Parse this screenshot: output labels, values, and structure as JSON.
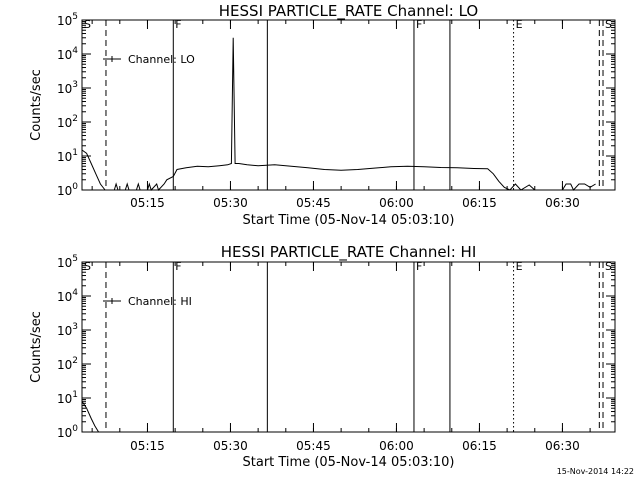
{
  "footer_timestamp": "15-Nov-2014 14:22",
  "chart_data": [
    {
      "type": "line",
      "title": "HESSI PARTICLE_RATE Channel: LO",
      "xlabel": "Start Time (05-Nov-14 05:03:10)",
      "ylabel": "Counts/sec",
      "yscale": "log",
      "ylim": [
        1,
        100000
      ],
      "xlim": [
        "05:03:10",
        "06:39:30"
      ],
      "x_ticks": [
        "05:15",
        "05:30",
        "05:45",
        "06:00",
        "06:15",
        "06:30"
      ],
      "y_ticks": [
        "10^0",
        "10^1",
        "10^2",
        "10^3",
        "10^4",
        "10^5"
      ],
      "legend": [
        {
          "label": "Channel: LO"
        }
      ],
      "markers": [
        {
          "label": "S",
          "time": "05:03:10",
          "style": "solid"
        },
        {
          "label": "",
          "time": "05:07:30",
          "style": "dashed"
        },
        {
          "label": "F",
          "time": "05:19:40",
          "style": "solid"
        },
        {
          "label": "",
          "time": "05:36:40",
          "style": "solid"
        },
        {
          "label": "F",
          "time": "06:03:10",
          "style": "solid"
        },
        {
          "label": "",
          "time": "06:09:40",
          "style": "solid"
        },
        {
          "label": "E",
          "time": "06:21:10",
          "style": "dotted"
        },
        {
          "label": "",
          "time": "06:36:40",
          "style": "dashed"
        },
        {
          "label": "S",
          "time": "06:37:20",
          "style": "dashed"
        }
      ],
      "series": [
        {
          "name": "Channel: LO",
          "points": [
            [
              "05:03:10",
              15
            ],
            [
              "05:04:00",
              12
            ],
            [
              "05:04:50",
              6
            ],
            [
              "05:05:40",
              3
            ],
            [
              "05:06:30",
              1.5
            ],
            [
              "05:07:20",
              1
            ],
            [
              "05:08:00",
              1
            ],
            [
              "05:09:00",
              1
            ],
            [
              "05:09:20",
              1.5
            ],
            [
              "05:09:40",
              1
            ],
            [
              "05:11:00",
              1
            ],
            [
              "05:11:20",
              1.5
            ],
            [
              "05:11:40",
              1
            ],
            [
              "05:13:00",
              1
            ],
            [
              "05:13:20",
              1.5
            ],
            [
              "05:13:40",
              1
            ],
            [
              "05:15:00",
              1
            ],
            [
              "05:15:20",
              1.5
            ],
            [
              "05:15:40",
              1
            ],
            [
              "05:16:40",
              1.5
            ],
            [
              "05:17:00",
              1
            ],
            [
              "05:18:00",
              1.5
            ],
            [
              "05:18:30",
              2
            ],
            [
              "05:19:40",
              2.5
            ],
            [
              "05:20:20",
              4
            ],
            [
              "05:22:00",
              4.5
            ],
            [
              "05:24:00",
              5
            ],
            [
              "05:26:00",
              4.8
            ],
            [
              "05:28:00",
              5.2
            ],
            [
              "05:29:30",
              5.5
            ],
            [
              "05:30:10",
              6
            ],
            [
              "05:30:30",
              30000
            ],
            [
              "05:30:50",
              6
            ],
            [
              "05:31:30",
              6
            ],
            [
              "05:33:00",
              5.5
            ],
            [
              "05:35:00",
              5.2
            ],
            [
              "05:38:00",
              5.5
            ],
            [
              "05:41:00",
              5
            ],
            [
              "05:44:00",
              4.5
            ],
            [
              "05:47:00",
              4
            ],
            [
              "05:50:00",
              3.8
            ],
            [
              "05:53:00",
              4
            ],
            [
              "05:56:00",
              4.4
            ],
            [
              "05:59:00",
              4.8
            ],
            [
              "06:02:00",
              5
            ],
            [
              "06:05:00",
              4.8
            ],
            [
              "06:08:00",
              4.6
            ],
            [
              "06:11:00",
              4.5
            ],
            [
              "06:14:00",
              4.3
            ],
            [
              "06:16:30",
              4.2
            ],
            [
              "06:17:30",
              3
            ],
            [
              "06:18:30",
              1.8
            ],
            [
              "06:19:30",
              1.2
            ],
            [
              "06:20:30",
              1
            ],
            [
              "06:21:30",
              1.5
            ],
            [
              "06:22:30",
              1
            ],
            [
              "06:24:00",
              1.4
            ],
            [
              "06:25:00",
              1
            ],
            [
              "06:30:00",
              1
            ],
            [
              "06:30:40",
              1.5
            ],
            [
              "06:31:30",
              1.5
            ],
            [
              "06:32:00",
              1
            ],
            [
              "06:33:00",
              1.5
            ],
            [
              "06:34:00",
              1.5
            ],
            [
              "06:35:00",
              1.2
            ],
            [
              "06:36:00",
              1.5
            ]
          ]
        }
      ]
    },
    {
      "type": "line",
      "title": "HESSI PARTICLE_RATE Channel: HI",
      "xlabel": "Start Time (05-Nov-14 05:03:10)",
      "ylabel": "Counts/sec",
      "yscale": "log",
      "ylim": [
        1,
        100000
      ],
      "xlim": [
        "05:03:10",
        "06:39:30"
      ],
      "x_ticks": [
        "05:15",
        "05:30",
        "05:45",
        "06:00",
        "06:15",
        "06:30"
      ],
      "y_ticks": [
        "10^0",
        "10^1",
        "10^2",
        "10^3",
        "10^4",
        "10^5"
      ],
      "legend": [
        {
          "label": "Channel: HI"
        }
      ],
      "markers": [
        {
          "label": "S",
          "time": "05:03:10",
          "style": "solid"
        },
        {
          "label": "",
          "time": "05:07:30",
          "style": "dashed"
        },
        {
          "label": "F",
          "time": "05:19:40",
          "style": "solid"
        },
        {
          "label": "",
          "time": "05:36:40",
          "style": "solid"
        },
        {
          "label": "F",
          "time": "06:03:10",
          "style": "solid"
        },
        {
          "label": "",
          "time": "06:09:40",
          "style": "solid"
        },
        {
          "label": "E",
          "time": "06:21:10",
          "style": "dotted"
        },
        {
          "label": "",
          "time": "06:36:40",
          "style": "dashed"
        },
        {
          "label": "S",
          "time": "06:37:20",
          "style": "dashed"
        }
      ],
      "series": [
        {
          "name": "Channel: HI",
          "points": [
            [
              "05:03:10",
              8
            ],
            [
              "05:04:00",
              5
            ],
            [
              "05:04:50",
              2.5
            ],
            [
              "05:05:30",
              1.5
            ],
            [
              "05:06:10",
              1
            ]
          ]
        }
      ]
    }
  ]
}
